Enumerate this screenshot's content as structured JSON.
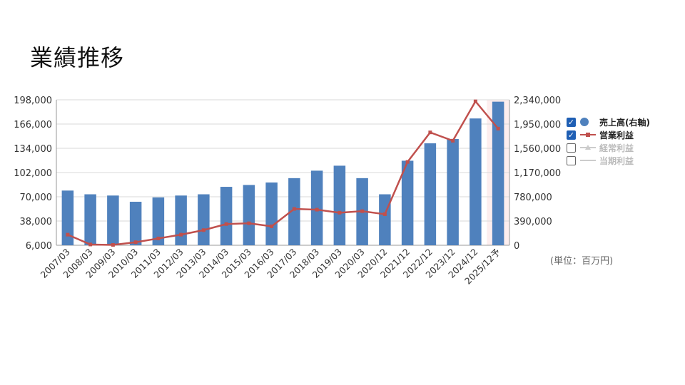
{
  "page": {
    "title": "業績推移"
  },
  "unit_note": "(単位：百万円)",
  "chart_data": {
    "type": "bar",
    "categories": [
      "2007/03",
      "2008/03",
      "2009/03",
      "2010/03",
      "2011/03",
      "2012/03",
      "2013/03",
      "2014/03",
      "2015/03",
      "2016/03",
      "2017/03",
      "2018/03",
      "2019/03",
      "2020/03",
      "2020/12",
      "2021/12",
      "2022/12",
      "2023/12",
      "2024/12",
      "2025/12予"
    ],
    "left_axis": {
      "ticks": [
        "198,000",
        "166,000",
        "134,000",
        "102,000",
        "70,000",
        "38,000",
        "6,000"
      ],
      "min": 6000,
      "max": 198000
    },
    "right_axis": {
      "ticks": [
        "2,340,000",
        "1,950,000",
        "1,560,000",
        "1,170,000",
        "780,000",
        "390,000",
        "0"
      ],
      "min": 0,
      "max": 2340000
    },
    "series": [
      {
        "name": "売上高(右軸)",
        "type": "bar",
        "axis": "right",
        "color": "#4f81bd",
        "values": [
          880000,
          820000,
          800000,
          700000,
          770000,
          800000,
          820000,
          940000,
          970000,
          1010000,
          1080000,
          1200000,
          1280000,
          1080000,
          820000,
          1360000,
          1640000,
          1710000,
          2040000,
          2310000
        ]
      },
      {
        "name": "営業利益",
        "type": "line",
        "axis": "left",
        "color": "#c0504d",
        "values": [
          20000,
          7000,
          6500,
          10000,
          15000,
          20000,
          26000,
          34000,
          35000,
          31000,
          54000,
          53000,
          49000,
          51000,
          47000,
          116000,
          155000,
          144000,
          196000,
          160000
        ]
      }
    ],
    "legend": [
      {
        "label": "売上高(右軸)",
        "checked": true,
        "marker": "circle",
        "color": "#4f81bd"
      },
      {
        "label": "営業利益",
        "checked": true,
        "marker": "line-square",
        "color": "#c0504d"
      },
      {
        "label": "経常利益",
        "checked": false,
        "marker": "line-triangle",
        "color": "#cccccc"
      },
      {
        "label": "当期利益",
        "checked": false,
        "marker": "line",
        "color": "#cccccc"
      }
    ],
    "legend_position": "right",
    "highlighted_category": "2025/12予",
    "grid": true
  }
}
